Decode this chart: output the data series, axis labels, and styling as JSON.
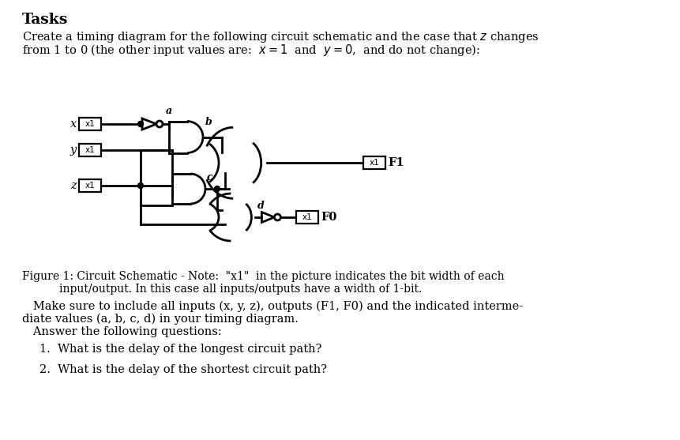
{
  "bg_color": "#ffffff",
  "text_color": "#000000",
  "title": "Tasks",
  "line1": "Create a timing diagram for the following circuit schematic and the case that $z$ changes",
  "line2": "from 1 to 0 (the other input values are:  $x = 1$  and  $y = 0$,  and do not change):",
  "fig_cap1": "Figure 1: Circuit Schematic - Note:  \"x1\"  in the picture indicates the bit width of each",
  "fig_cap2": "input/output. In this case all inputs/outputs have a width of 1-bit.",
  "para2_l1": "   Make sure to include all inputs (x, y, z), outputs (F1, F0) and the indicated interme-",
  "para2_l2": "diate values (a, b, c, d) in your timing diagram.",
  "para2_l3": "   Answer the following questions:",
  "q1": "1.  What is the delay of the longest circuit path?",
  "q2": "2.  What is the delay of the shortest circuit path?"
}
